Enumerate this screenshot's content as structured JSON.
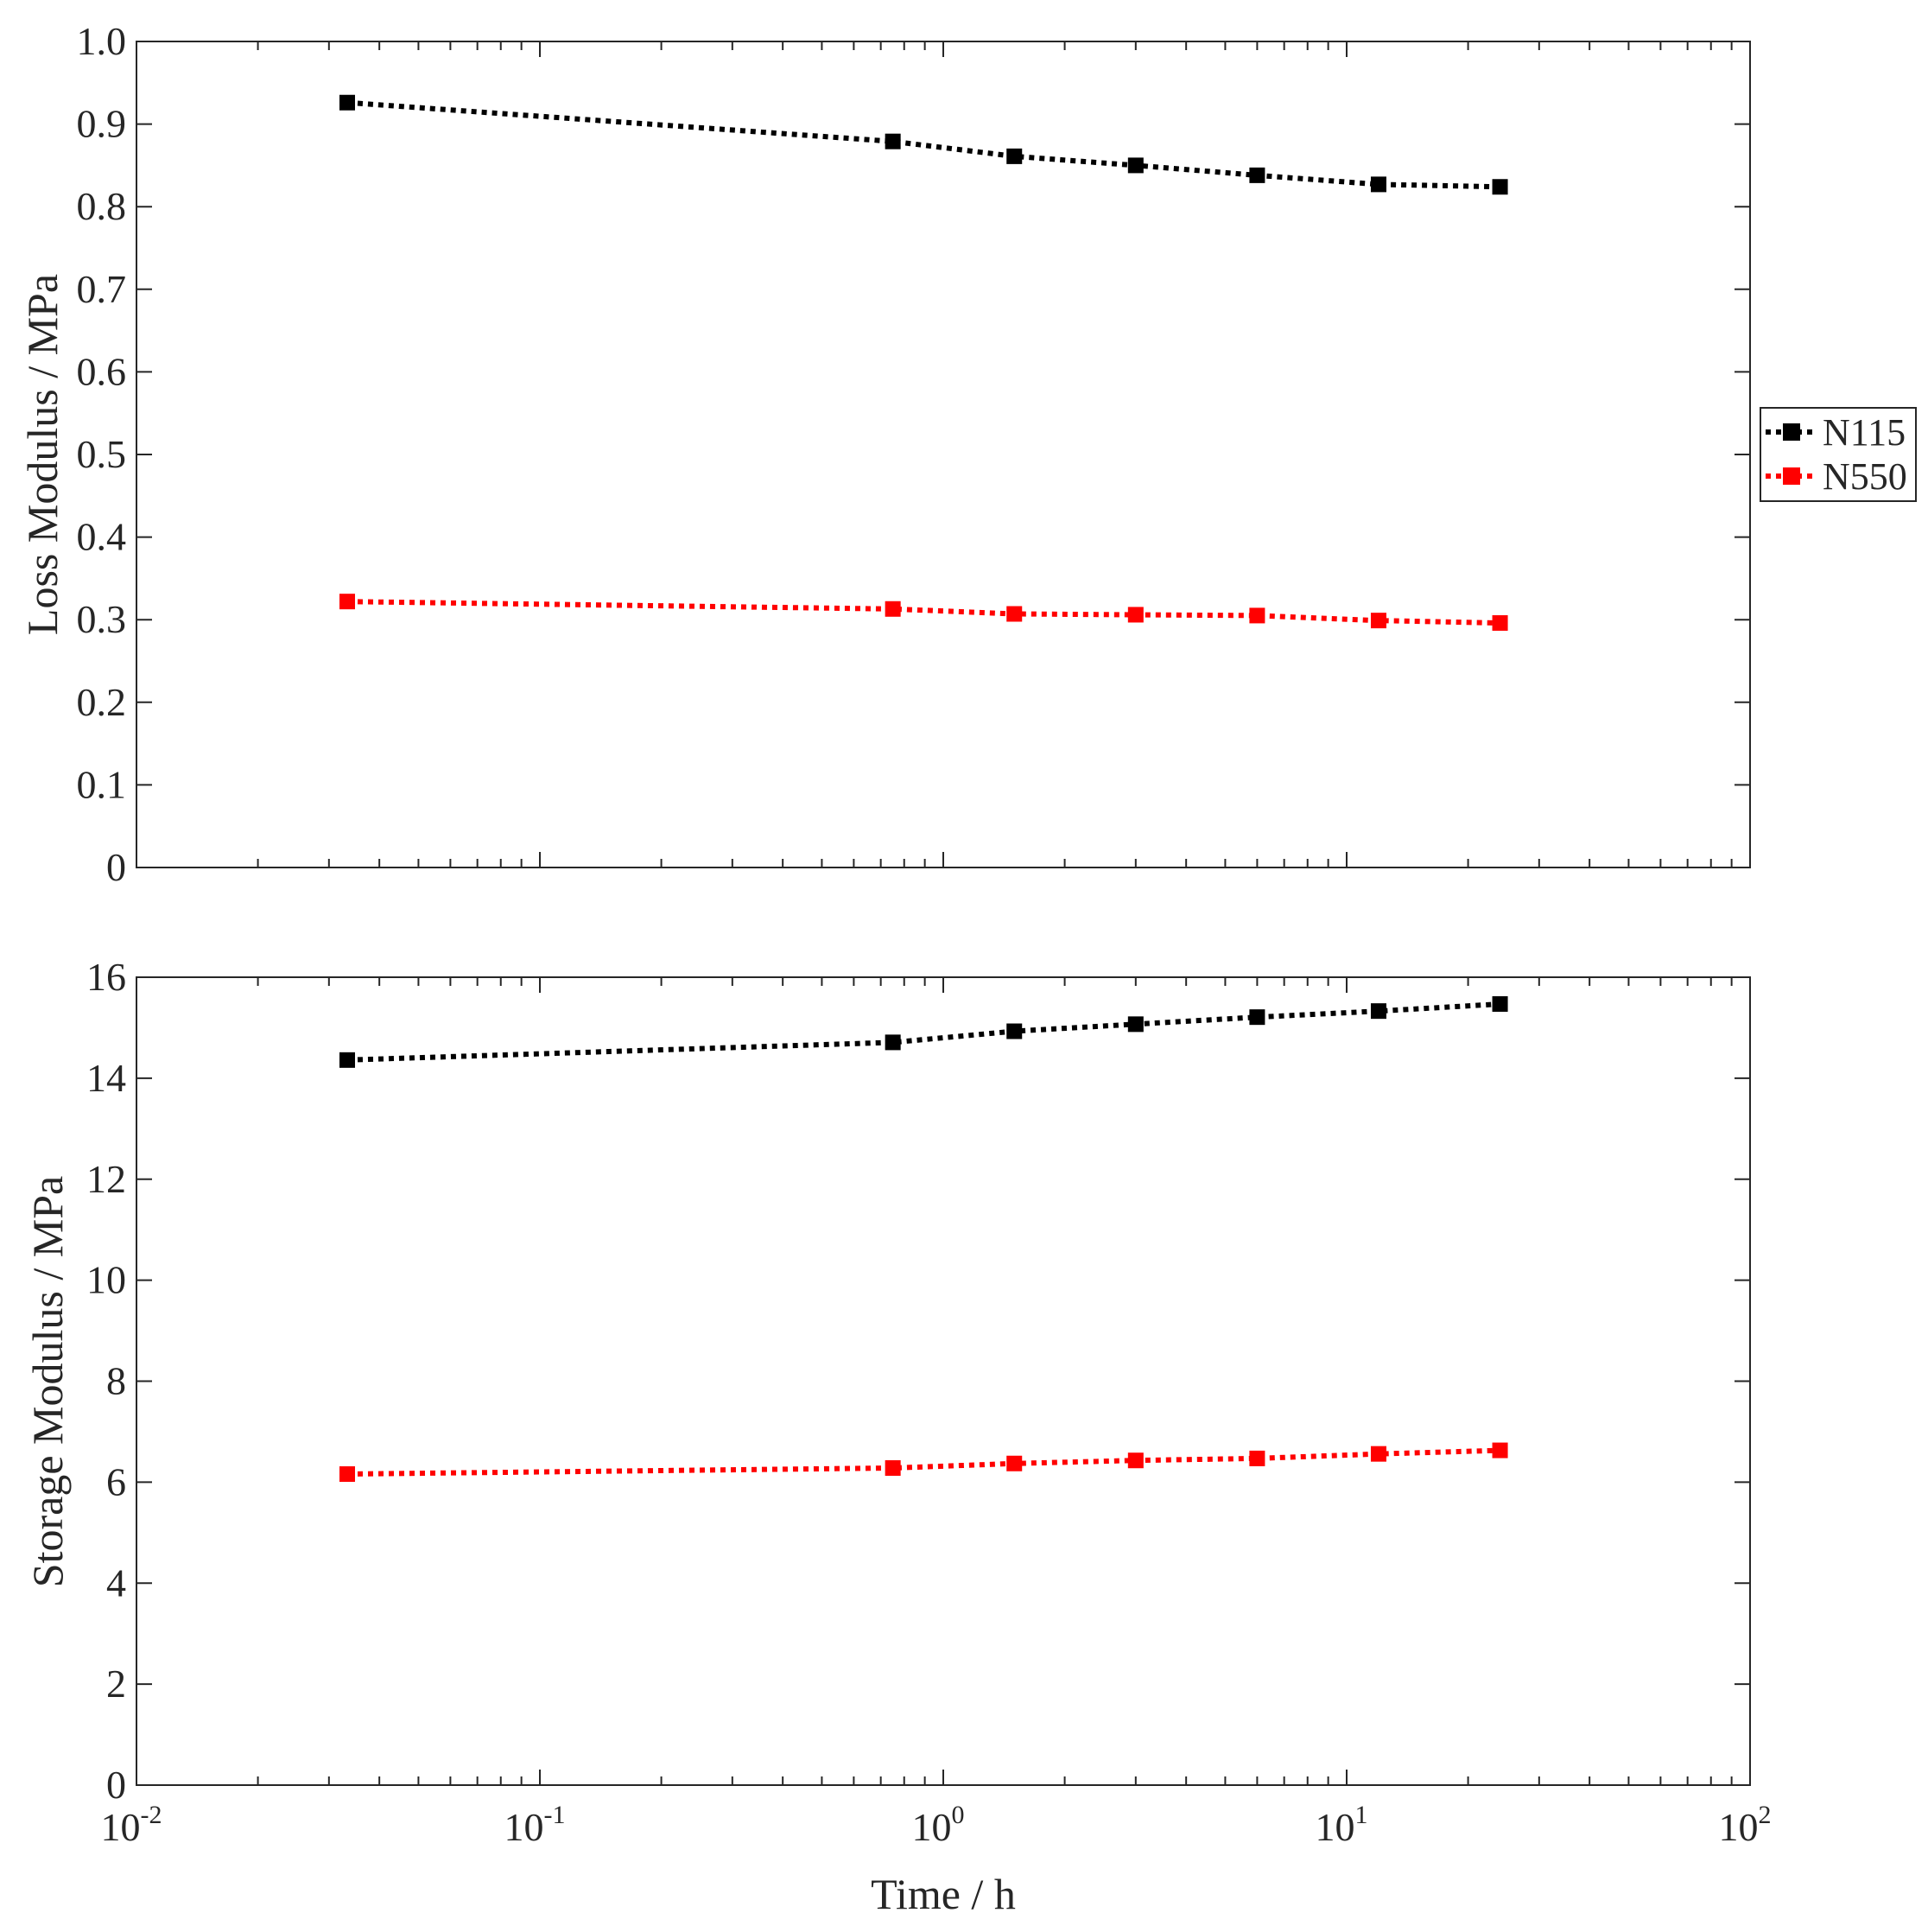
{
  "chart_data": [
    {
      "type": "line",
      "title": "",
      "xlabel": "",
      "ylabel": "Loss Modulus / MPa",
      "xscale": "log",
      "xlim": [
        0.01,
        100
      ],
      "ylim": [
        0,
        1.0
      ],
      "grid": false,
      "x": [
        0.0333,
        0.75,
        1.5,
        3,
        6,
        12,
        24
      ],
      "yticks": [
        "0",
        "0.1",
        "0.2",
        "0.3",
        "0.4",
        "0.5",
        "0.6",
        "0.7",
        "0.8",
        "0.9",
        "1.0"
      ],
      "series": [
        {
          "name": "N115",
          "color": "#000000",
          "values": [
            0.926,
            0.879,
            0.861,
            0.85,
            0.838,
            0.827,
            0.824
          ]
        },
        {
          "name": "N550",
          "color": "#ff0000",
          "values": [
            0.322,
            0.313,
            0.307,
            0.306,
            0.305,
            0.299,
            0.296
          ]
        }
      ]
    },
    {
      "type": "line",
      "title": "",
      "xlabel": "Time / h",
      "ylabel": "Storage Modulus / MPa",
      "xscale": "log",
      "xlim": [
        0.01,
        100
      ],
      "ylim": [
        0,
        16
      ],
      "grid": false,
      "x": [
        0.0333,
        0.75,
        1.5,
        3,
        6,
        12,
        24
      ],
      "yticks": [
        "0",
        "2",
        "4",
        "6",
        "8",
        "10",
        "12",
        "14",
        "16"
      ],
      "xticks": [
        {
          "base": "10",
          "exp": "-2"
        },
        {
          "base": "10",
          "exp": "-1"
        },
        {
          "base": "10",
          "exp": "0"
        },
        {
          "base": "10",
          "exp": "1"
        },
        {
          "base": "10",
          "exp": "2"
        }
      ],
      "series": [
        {
          "name": "N115",
          "color": "#000000",
          "values": [
            14.36,
            14.71,
            14.93,
            15.07,
            15.21,
            15.33,
            15.47
          ]
        },
        {
          "name": "N550",
          "color": "#ff0000",
          "values": [
            6.16,
            6.28,
            6.37,
            6.43,
            6.47,
            6.56,
            6.63
          ]
        }
      ]
    }
  ],
  "legend": {
    "placement": "right",
    "entries": [
      {
        "label": "N115",
        "color": "#000000"
      },
      {
        "label": "N550",
        "color": "#ff0000"
      }
    ]
  }
}
